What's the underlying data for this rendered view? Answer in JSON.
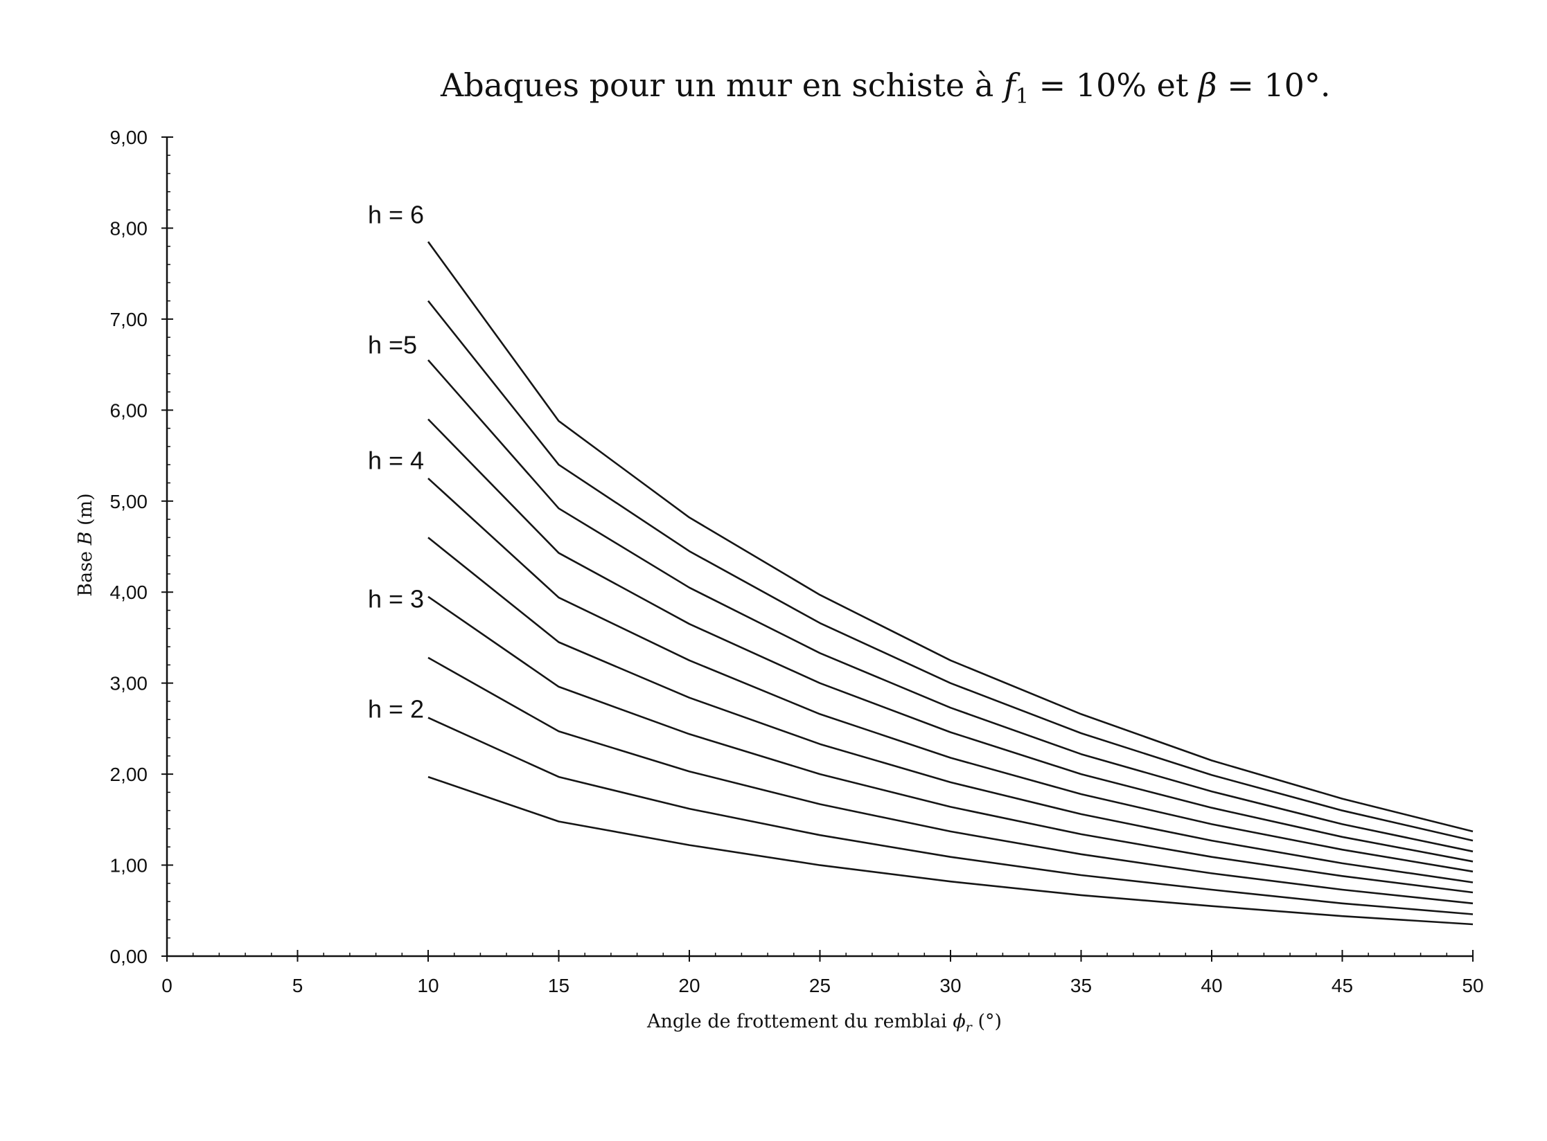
{
  "chart_data": {
    "type": "line",
    "title": "Abaques pour un mur en schiste à f₁ = 10% et β = 10°.",
    "title_parts": {
      "before": "Abaques pour un mur en schiste à ",
      "f_symbol": "f",
      "f_subscript": "1",
      "middle": " = 10% et ",
      "beta_symbol": "β",
      "after": " = 10°."
    },
    "xlabel": "Angle de frottement du remblai ϕᵣ (°)",
    "xlabel_parts": {
      "before": "Angle de frottement du remblai ",
      "phi": "ϕ",
      "sub": "r",
      "after": " (°)"
    },
    "ylabel": "Base B (m)",
    "ylabel_parts": {
      "before": "Base ",
      "symbol": "B",
      "after": " (m)"
    },
    "xlim": [
      0,
      50
    ],
    "ylim": [
      0,
      9
    ],
    "x_ticks": [
      "0",
      "5",
      "10",
      "15",
      "20",
      "25",
      "30",
      "35",
      "40",
      "45",
      "50"
    ],
    "y_ticks": [
      "0,00",
      "1,00",
      "2,00",
      "3,00",
      "4,00",
      "5,00",
      "6,00",
      "7,00",
      "8,00",
      "9,00"
    ],
    "grid": false,
    "line_color": "#151515",
    "x": [
      10,
      15,
      20,
      25,
      30,
      35,
      40,
      45,
      50
    ],
    "series": [
      {
        "values": [
          7.85,
          5.88,
          4.82,
          3.97,
          3.25,
          2.66,
          2.15,
          1.73,
          1.37
        ]
      },
      {
        "values": [
          7.2,
          5.4,
          4.45,
          3.66,
          3.0,
          2.45,
          1.99,
          1.6,
          1.27
        ]
      },
      {
        "values": [
          6.55,
          4.92,
          4.05,
          3.33,
          2.73,
          2.22,
          1.81,
          1.45,
          1.15
        ]
      },
      {
        "values": [
          5.9,
          4.43,
          3.65,
          3.0,
          2.46,
          2.0,
          1.63,
          1.31,
          1.04
        ]
      },
      {
        "values": [
          5.25,
          3.94,
          3.25,
          2.66,
          2.18,
          1.78,
          1.45,
          1.17,
          0.93
        ]
      },
      {
        "values": [
          4.6,
          3.45,
          2.84,
          2.33,
          1.91,
          1.56,
          1.27,
          1.02,
          0.81
        ]
      },
      {
        "values": [
          3.95,
          2.96,
          2.44,
          2.0,
          1.64,
          1.34,
          1.09,
          0.88,
          0.7
        ]
      },
      {
        "values": [
          3.28,
          2.47,
          2.03,
          1.67,
          1.37,
          1.12,
          0.91,
          0.73,
          0.58
        ]
      },
      {
        "values": [
          2.62,
          1.97,
          1.62,
          1.33,
          1.09,
          0.89,
          0.73,
          0.58,
          0.46
        ]
      },
      {
        "values": [
          1.97,
          1.48,
          1.22,
          1.0,
          0.82,
          0.67,
          0.55,
          0.44,
          0.35
        ]
      }
    ],
    "annotations": [
      {
        "text": "h = 6",
        "value": 8.15
      },
      {
        "text": "h =5",
        "value": 6.72
      },
      {
        "text": "h = 4",
        "value": 5.45
      },
      {
        "text": "h = 3",
        "value": 3.93
      },
      {
        "text": "h = 2",
        "value": 2.72
      }
    ]
  }
}
